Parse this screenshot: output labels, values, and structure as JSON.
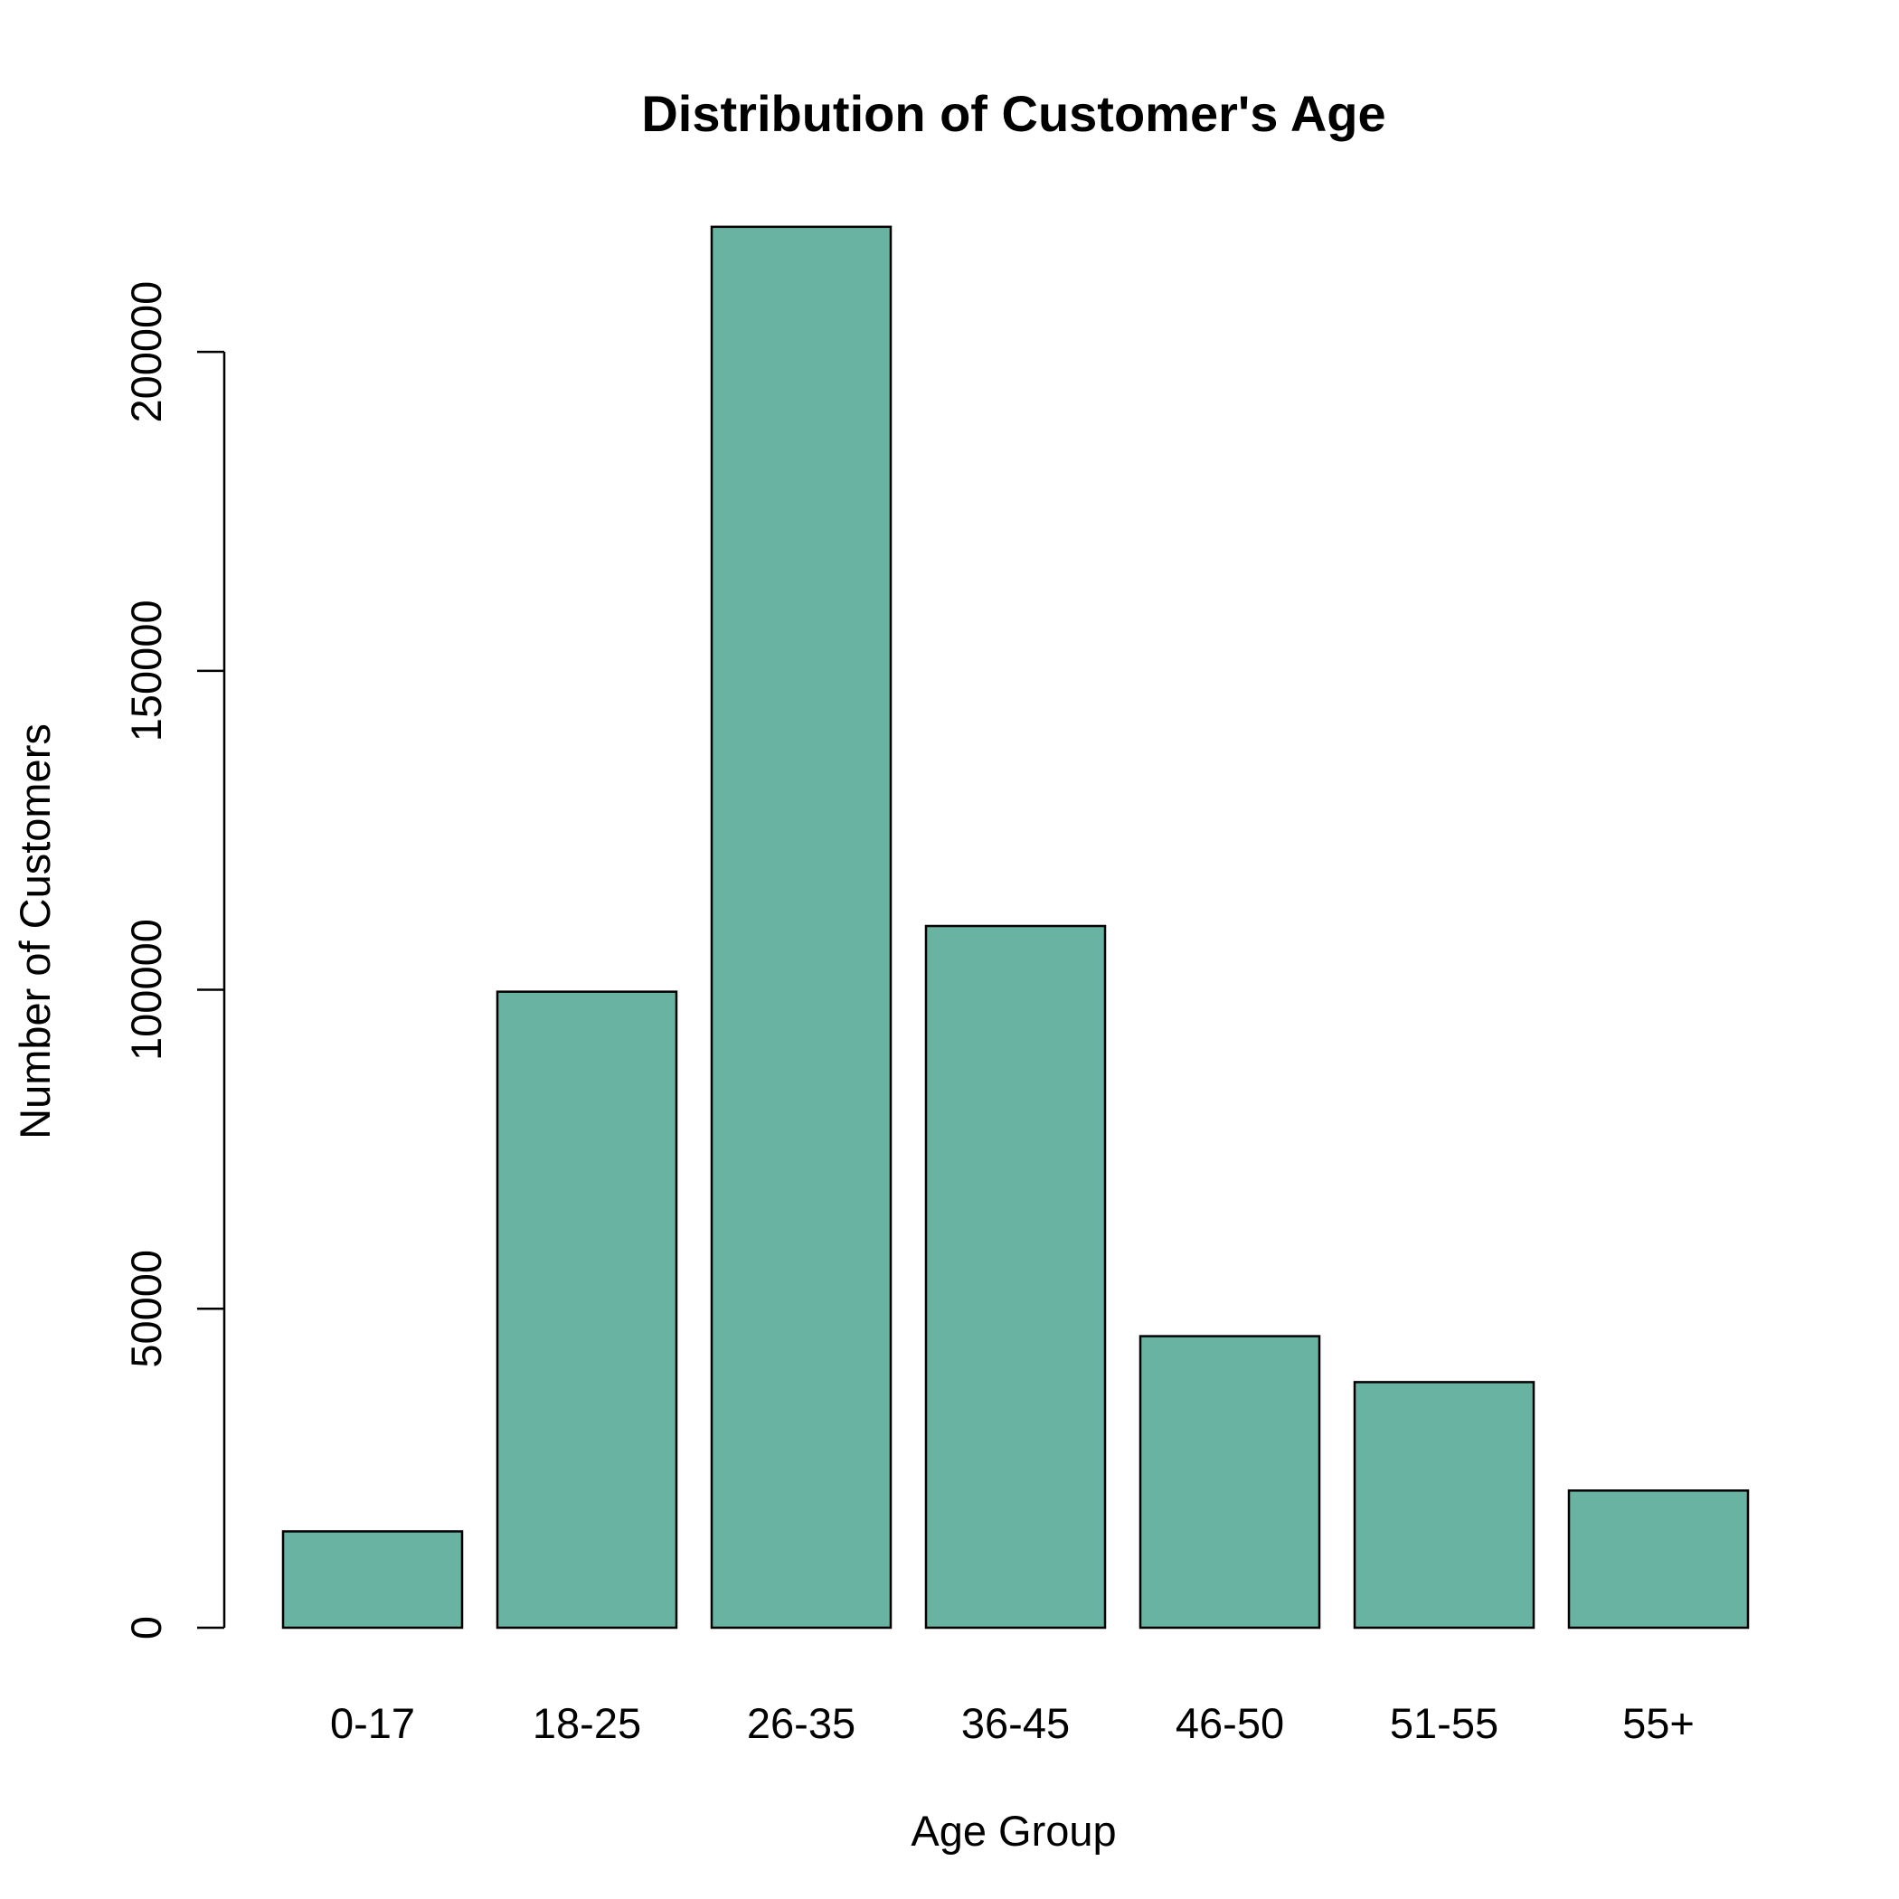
{
  "chart_data": {
    "type": "bar",
    "title": "Distribution of Customer's Age",
    "xlabel": "Age Group",
    "ylabel": "Number of Customers",
    "categories": [
      "0-17",
      "18-25",
      "26-35",
      "36-45",
      "46-50",
      "51-55",
      "55+"
    ],
    "values": [
      15100,
      99700,
      219600,
      110000,
      45700,
      38500,
      21500
    ],
    "ylim": [
      0,
      220000
    ],
    "yticks": [
      0,
      50000,
      100000,
      150000,
      200000
    ],
    "ytick_labels": [
      "0",
      "50000",
      "100000",
      "150000",
      "200000"
    ],
    "grid": false,
    "legend": "none"
  },
  "colors": {
    "bar_fill": "#69b3a2",
    "bar_stroke": "#000000",
    "axis": "#000000",
    "background": "#ffffff"
  }
}
